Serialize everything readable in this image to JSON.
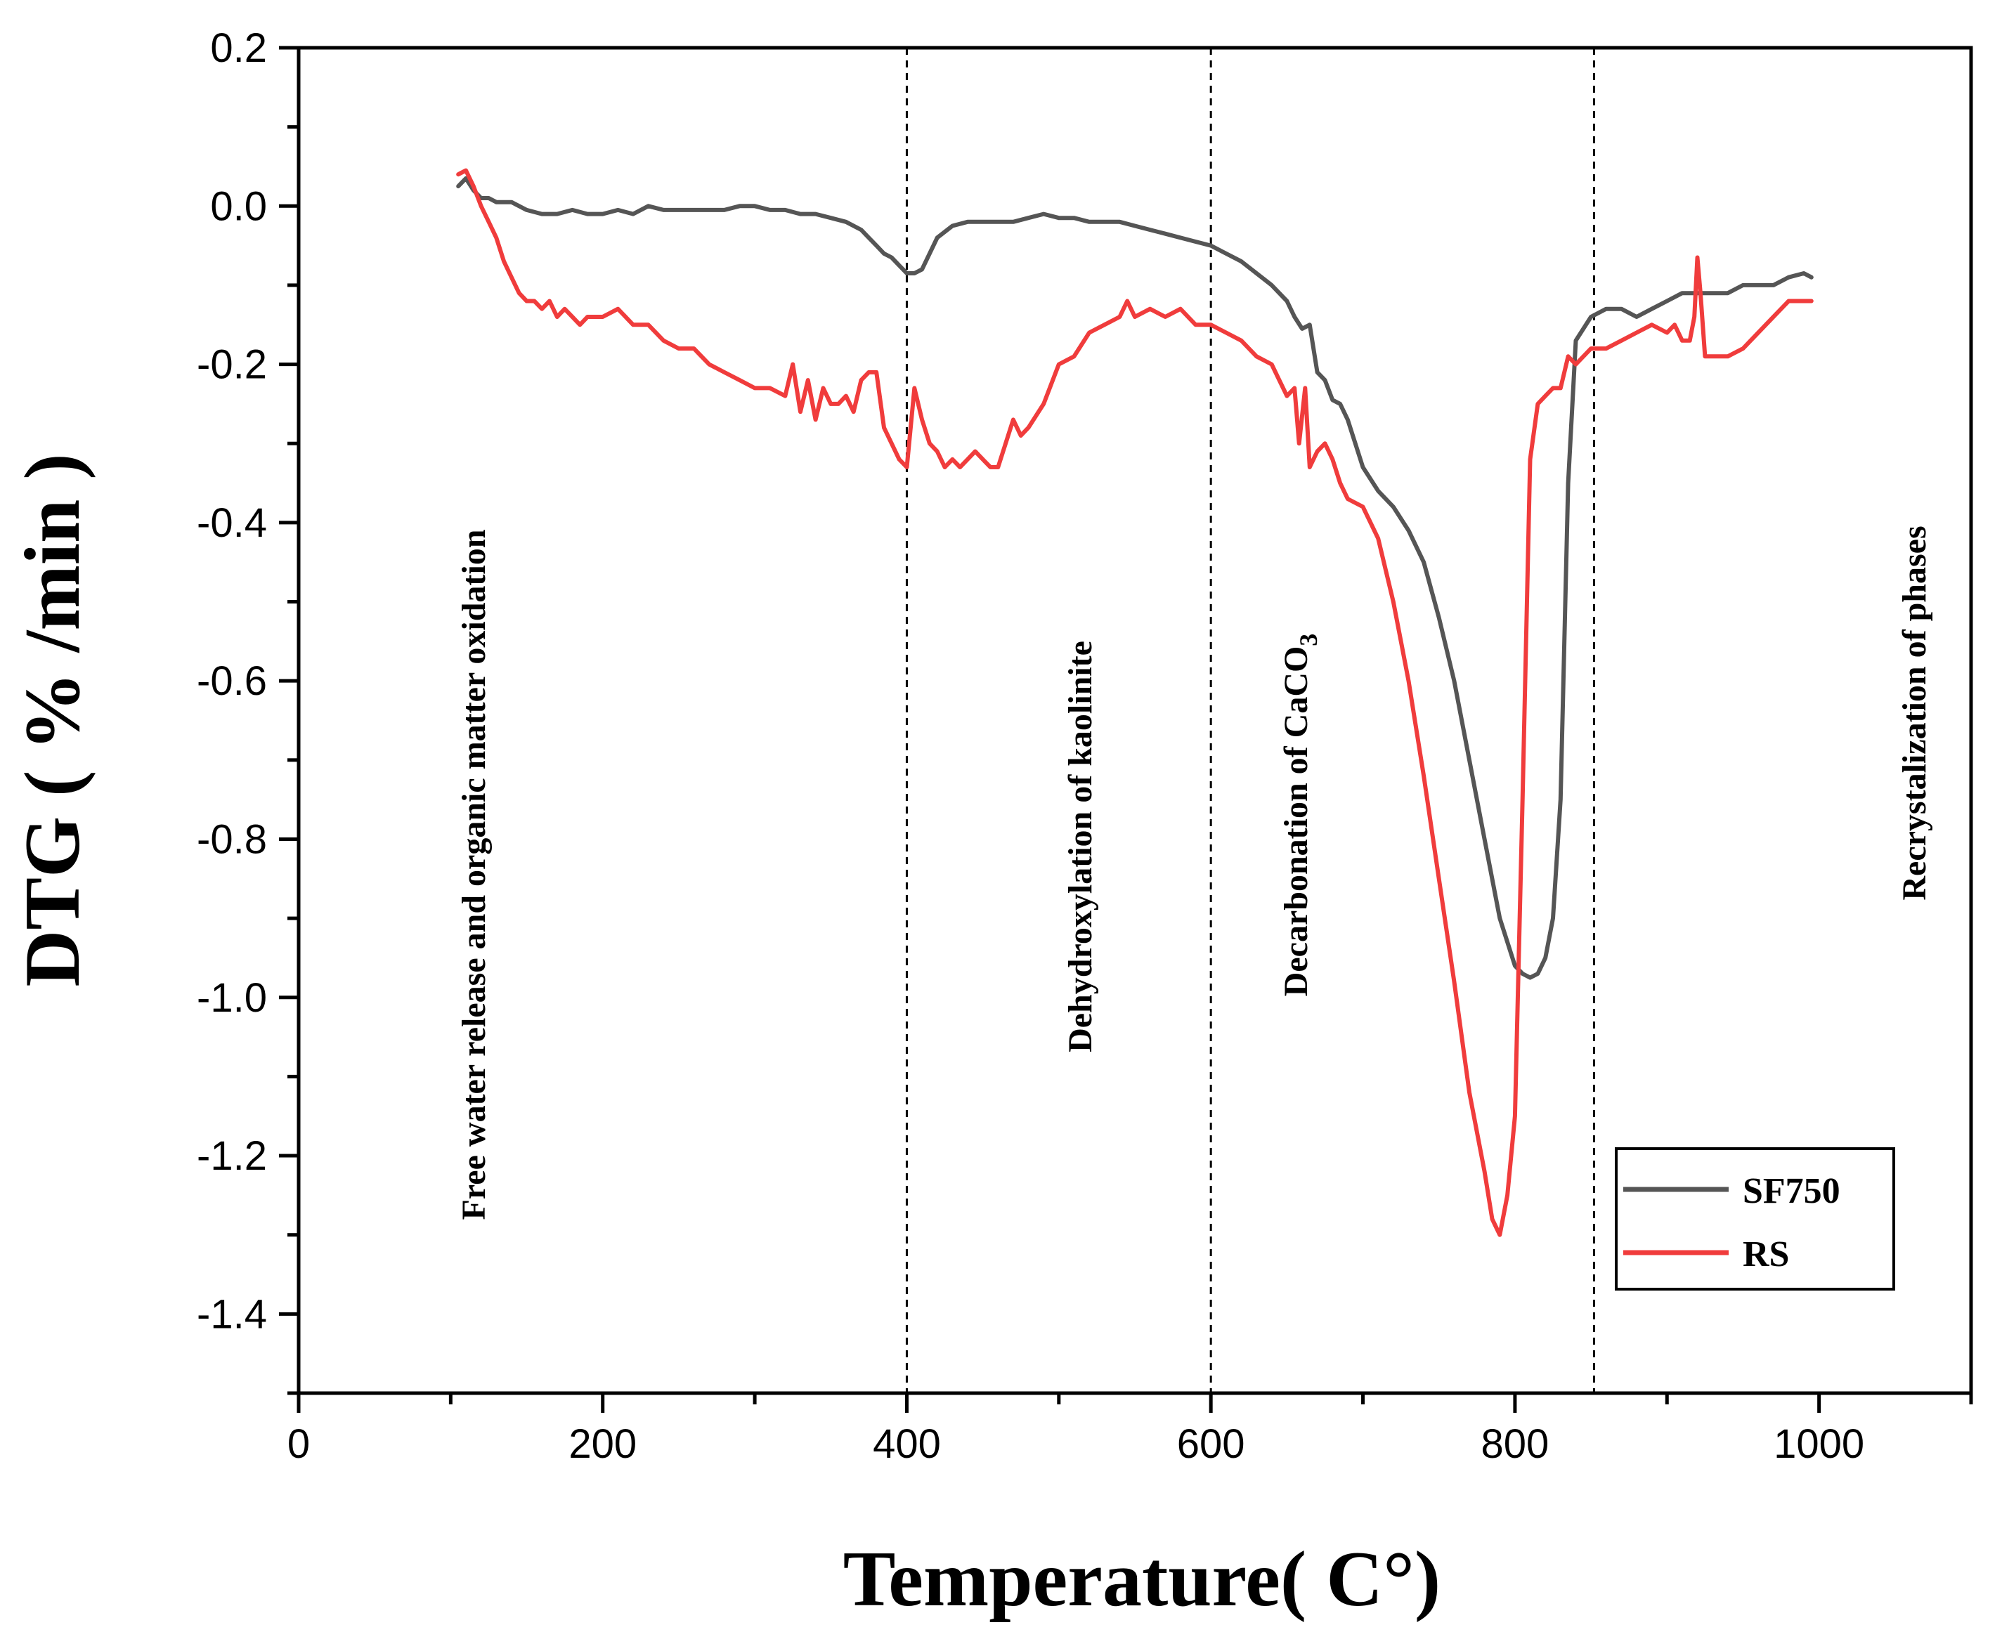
{
  "chart_data": {
    "type": "line",
    "title": "",
    "xlabel": "Temperature( C°)",
    "ylabel": "DTG ( % /min )",
    "xlim": [
      0,
      1100
    ],
    "ylim": [
      -1.5,
      0.2
    ],
    "xticks": [
      0,
      200,
      400,
      600,
      800,
      1000
    ],
    "xtick_labels": [
      "0",
      "200",
      "400",
      "600",
      "800",
      "1000"
    ],
    "yticks": [
      0.2,
      0.0,
      -0.2,
      -0.4,
      -0.6,
      -0.8,
      -1.0,
      -1.2,
      -1.4
    ],
    "ytick_labels": [
      "0.2",
      "0.0",
      "-0.2",
      "-0.4",
      "-0.6",
      "-0.8",
      "-1.0",
      "-1.2",
      "-1.4"
    ],
    "grid": false,
    "legend_position": "bottom-right",
    "vlines": [
      400,
      600,
      852
    ],
    "annotations": [
      {
        "text": "Free water release and organic matter oxidation",
        "x": 115
      },
      {
        "text": "Dehydroxylation of kaolinite",
        "x": 510
      },
      {
        "text": "Decarbonation of CaCO",
        "subscript": "3",
        "x": 660
      },
      {
        "text": "Recrystalization of phases",
        "x": 1065
      }
    ],
    "series": [
      {
        "name": "SF750",
        "color": "#555555",
        "x": [
          105,
          110,
          115,
          120,
          125,
          130,
          140,
          150,
          160,
          170,
          180,
          190,
          200,
          210,
          220,
          230,
          240,
          250,
          260,
          270,
          280,
          290,
          300,
          310,
          320,
          330,
          340,
          350,
          360,
          370,
          375,
          380,
          385,
          390,
          395,
          400,
          405,
          410,
          415,
          420,
          430,
          440,
          450,
          460,
          470,
          480,
          490,
          500,
          510,
          520,
          530,
          540,
          550,
          560,
          570,
          580,
          590,
          600,
          610,
          620,
          630,
          640,
          650,
          655,
          660,
          665,
          670,
          675,
          680,
          685,
          690,
          695,
          700,
          710,
          720,
          730,
          740,
          750,
          760,
          770,
          780,
          790,
          800,
          805,
          810,
          815,
          820,
          825,
          830,
          835,
          840,
          850,
          860,
          870,
          880,
          890,
          900,
          910,
          920,
          930,
          940,
          950,
          960,
          970,
          980,
          990,
          995
        ],
        "values": [
          0.025,
          0.035,
          0.02,
          0.01,
          0.01,
          0.005,
          0.005,
          -0.005,
          -0.01,
          -0.01,
          -0.005,
          -0.01,
          -0.01,
          -0.005,
          -0.01,
          0.0,
          -0.005,
          -0.005,
          -0.005,
          -0.005,
          -0.005,
          0.0,
          0.0,
          -0.005,
          -0.005,
          -0.01,
          -0.01,
          -0.015,
          -0.02,
          -0.03,
          -0.04,
          -0.05,
          -0.06,
          -0.065,
          -0.075,
          -0.085,
          -0.085,
          -0.08,
          -0.06,
          -0.04,
          -0.025,
          -0.02,
          -0.02,
          -0.02,
          -0.02,
          -0.015,
          -0.01,
          -0.015,
          -0.015,
          -0.02,
          -0.02,
          -0.02,
          -0.025,
          -0.03,
          -0.035,
          -0.04,
          -0.045,
          -0.05,
          -0.06,
          -0.07,
          -0.085,
          -0.1,
          -0.12,
          -0.14,
          -0.155,
          -0.15,
          -0.21,
          -0.22,
          -0.245,
          -0.25,
          -0.27,
          -0.3,
          -0.33,
          -0.36,
          -0.38,
          -0.41,
          -0.45,
          -0.52,
          -0.6,
          -0.7,
          -0.8,
          -0.9,
          -0.96,
          -0.97,
          -0.975,
          -0.97,
          -0.95,
          -0.9,
          -0.75,
          -0.35,
          -0.17,
          -0.14,
          -0.13,
          -0.13,
          -0.14,
          -0.13,
          -0.12,
          -0.11,
          -0.11,
          -0.11,
          -0.11,
          -0.1,
          -0.1,
          -0.1,
          -0.09,
          -0.085,
          -0.09
        ]
      },
      {
        "name": "RS",
        "color": "#f03c3c",
        "x": [
          105,
          110,
          115,
          120,
          125,
          130,
          135,
          140,
          145,
          150,
          155,
          160,
          165,
          170,
          175,
          180,
          185,
          190,
          200,
          210,
          220,
          230,
          240,
          250,
          260,
          270,
          280,
          290,
          300,
          310,
          320,
          325,
          330,
          335,
          340,
          345,
          350,
          355,
          360,
          365,
          370,
          375,
          380,
          385,
          390,
          395,
          400,
          405,
          410,
          415,
          420,
          425,
          430,
          435,
          440,
          445,
          450,
          455,
          460,
          465,
          470,
          475,
          480,
          490,
          500,
          510,
          520,
          530,
          540,
          545,
          550,
          560,
          570,
          580,
          590,
          600,
          610,
          620,
          630,
          640,
          645,
          650,
          655,
          658,
          662,
          665,
          670,
          675,
          680,
          685,
          690,
          700,
          710,
          720,
          730,
          740,
          750,
          760,
          770,
          780,
          785,
          790,
          795,
          800,
          805,
          810,
          815,
          820,
          825,
          830,
          835,
          840,
          845,
          850,
          860,
          870,
          880,
          890,
          900,
          905,
          910,
          915,
          918,
          920,
          922,
          925,
          930,
          940,
          950,
          960,
          970,
          980,
          990,
          995
        ],
        "values": [
          0.04,
          0.045,
          0.025,
          0.0,
          -0.02,
          -0.04,
          -0.07,
          -0.09,
          -0.11,
          -0.12,
          -0.12,
          -0.13,
          -0.12,
          -0.14,
          -0.13,
          -0.14,
          -0.15,
          -0.14,
          -0.14,
          -0.13,
          -0.15,
          -0.15,
          -0.17,
          -0.18,
          -0.18,
          -0.2,
          -0.21,
          -0.22,
          -0.23,
          -0.23,
          -0.24,
          -0.2,
          -0.26,
          -0.22,
          -0.27,
          -0.23,
          -0.25,
          -0.25,
          -0.24,
          -0.26,
          -0.22,
          -0.21,
          -0.21,
          -0.28,
          -0.3,
          -0.32,
          -0.33,
          -0.23,
          -0.27,
          -0.3,
          -0.31,
          -0.33,
          -0.32,
          -0.33,
          -0.32,
          -0.31,
          -0.32,
          -0.33,
          -0.33,
          -0.3,
          -0.27,
          -0.29,
          -0.28,
          -0.25,
          -0.2,
          -0.19,
          -0.16,
          -0.15,
          -0.14,
          -0.12,
          -0.14,
          -0.13,
          -0.14,
          -0.13,
          -0.15,
          -0.15,
          -0.16,
          -0.17,
          -0.19,
          -0.2,
          -0.22,
          -0.24,
          -0.23,
          -0.3,
          -0.23,
          -0.33,
          -0.31,
          -0.3,
          -0.32,
          -0.35,
          -0.37,
          -0.38,
          -0.42,
          -0.5,
          -0.6,
          -0.72,
          -0.85,
          -0.98,
          -1.12,
          -1.22,
          -1.28,
          -1.3,
          -1.25,
          -1.15,
          -0.75,
          -0.32,
          -0.25,
          -0.24,
          -0.23,
          -0.23,
          -0.19,
          -0.2,
          -0.19,
          -0.18,
          -0.18,
          -0.17,
          -0.16,
          -0.15,
          -0.16,
          -0.15,
          -0.17,
          -0.17,
          -0.14,
          -0.065,
          -0.11,
          -0.19,
          -0.19,
          -0.19,
          -0.18,
          -0.16,
          -0.14,
          -0.12,
          -0.12,
          -0.12
        ]
      }
    ]
  }
}
